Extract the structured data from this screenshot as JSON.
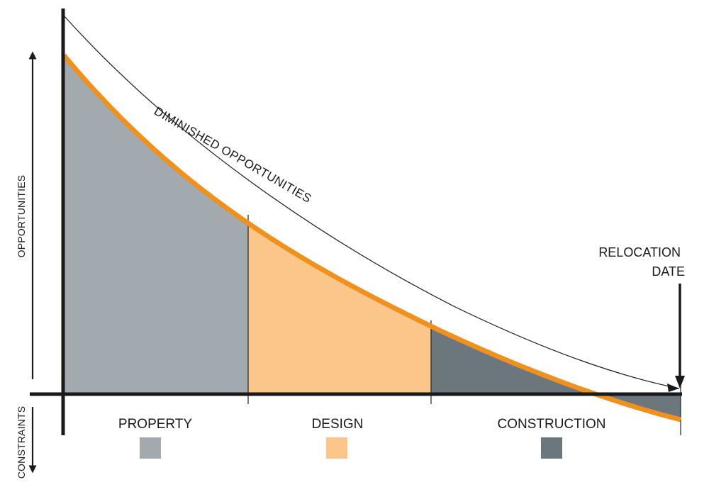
{
  "diagram": {
    "y_axis": {
      "upper_label": "OPPORTUNITIES",
      "lower_label": "CONSTRAINTS"
    },
    "curve_label": "DIMINISHED OPPORTUNITIES",
    "relocation": {
      "line1": "RELOCATION",
      "line2": "DATE"
    },
    "phases": [
      {
        "label": "PROPERTY",
        "color": "#a2aaaf"
      },
      {
        "label": "DESIGN",
        "color": "#fbc689"
      },
      {
        "label": "CONSTRUCTION",
        "color": "#6c777d"
      }
    ],
    "curve_color": "#f0901e",
    "axis_color": "#1a1a1a"
  }
}
